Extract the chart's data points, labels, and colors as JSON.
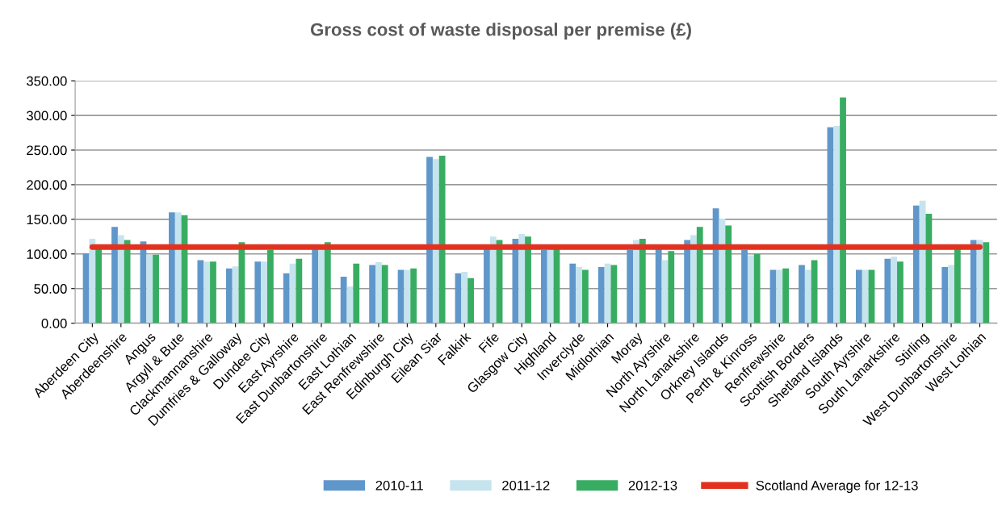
{
  "chart_data": {
    "type": "bar",
    "title": "Gross cost of waste disposal per premise (£)",
    "categories": [
      "Aberdeen City",
      "Aberdeenshire",
      "Angus",
      "Argyll & Bute",
      "Clackmannanshire",
      "Dumfries & Galloway",
      "Dundee City",
      "East Ayrshire",
      "East Dunbartonshire",
      "East Lothian",
      "East Renfrewshire",
      "Edinburgh City",
      "Eilean Siar",
      "Falkirk",
      "Fife",
      "Glasgow City",
      "Highland",
      "Inverclyde",
      "Midlothian",
      "Moray",
      "North Ayrshire",
      "North Lanarkshire",
      "Orkney Islands",
      "Perth & Kinross",
      "Renfrewshire",
      "Scottish Borders",
      "Shetland Islands",
      "South Ayrshire",
      "South Lanarkshire",
      "Stirling",
      "West Dunbartonshire",
      "West Lothian"
    ],
    "series": [
      {
        "name": "2010-11",
        "color": "#6097cb",
        "values": [
          101,
          139,
          118,
          160,
          91,
          79,
          89,
          72,
          108,
          67,
          84,
          77,
          240,
          72,
          108,
          122,
          106,
          86,
          81,
          106,
          108,
          120,
          166,
          106,
          77,
          84,
          283,
          77,
          93,
          170,
          81,
          120
        ]
      },
      {
        "name": "2011-12",
        "color": "#c5e4ee",
        "values": [
          122,
          127,
          99,
          160,
          89,
          82,
          89,
          86,
          108,
          53,
          88,
          77,
          237,
          74,
          125,
          129,
          108,
          81,
          86,
          120,
          91,
          127,
          151,
          98,
          77,
          77,
          285,
          77,
          96,
          177,
          84,
          120
        ]
      },
      {
        "name": "2012-13",
        "color": "#38ad62",
        "values": [
          108,
          120,
          99,
          156,
          89,
          117,
          106,
          93,
          117,
          86,
          84,
          79,
          242,
          65,
          120,
          125,
          108,
          77,
          84,
          122,
          104,
          139,
          141,
          100,
          79,
          91,
          326,
          77,
          89,
          158,
          108,
          117
        ]
      },
      {
        "name": "Scotland Average for 12-13",
        "type": "line",
        "color": "#e2321f",
        "values": [
          110,
          110,
          110,
          110,
          110,
          110,
          110,
          110,
          110,
          110,
          110,
          110,
          110,
          110,
          110,
          110,
          110,
          110,
          110,
          110,
          110,
          110,
          110,
          110,
          110,
          110,
          110,
          110,
          110,
          110,
          110,
          110
        ]
      }
    ],
    "ylim": [
      0,
      350
    ],
    "yticks": [
      {
        "value": 0,
        "label": "0.00"
      },
      {
        "value": 50,
        "label": "50.00"
      },
      {
        "value": 100,
        "label": "100.00"
      },
      {
        "value": 150,
        "label": "150.00"
      },
      {
        "value": 200,
        "label": "200.00"
      },
      {
        "value": 250,
        "label": "250.00"
      },
      {
        "value": 300,
        "label": "300.00"
      },
      {
        "value": 350,
        "label": "350.00"
      }
    ],
    "grid": "y",
    "legend": "bottom"
  }
}
